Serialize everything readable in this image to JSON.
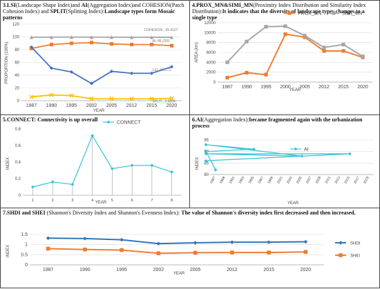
{
  "panels": [
    {
      "caption": [
        {
          "t": "3.LSI",
          "b": true
        },
        {
          "t": "(Landscape Shape Index)and ",
          "b": false
        },
        {
          "t": "AI",
          "b": true
        },
        {
          "t": "(Aggregation Index)and COHESION(Patch Cohesion Index) and ",
          "b": false
        },
        {
          "t": "SPLIT",
          "b": true
        },
        {
          "t": "(Splitting Index):",
          "b": false
        },
        {
          "t": "Landscape types form Mosaic patterns",
          "b": true
        }
      ]
    },
    {
      "caption": [
        {
          "t": "4.PROX_MN&SIMI_MN",
          "b": true
        },
        {
          "t": "(Proximity Index Distribution and Similarity Index Distribution):",
          "b": false
        },
        {
          "t": "It indicates that the diversity of landscape types changes to a single type",
          "b": true
        }
      ]
    },
    {
      "caption": [
        {
          "t": "5.CONNECT: Connectivity is up overall",
          "b": true
        }
      ]
    },
    {
      "caption": [
        {
          "t": "6.AI",
          "b": true
        },
        {
          "t": "(Aggregation Index):",
          "b": false
        },
        {
          "t": "became fragmented again with the urbanization process",
          "b": true
        }
      ]
    },
    {
      "caption": [
        {
          "t": "7.SHDI and SHEI ",
          "b": true
        },
        {
          "t": "(Shannon's Diversity Index and Shannon's Evenness Index): ",
          "b": false
        },
        {
          "t": "The value of Shannon's diversity index first decreased and then increased.",
          "b": true
        }
      ]
    }
  ],
  "chart_data": [
    {
      "type": "line",
      "x": [
        "1987",
        "1990",
        "1995",
        "2002",
        "2005",
        "2012",
        "2015",
        "2020"
      ],
      "xlabel": "YEAR",
      "ylabel": "PROPORTION (100%)",
      "ylim": [
        0,
        120
      ],
      "yticks": [
        0,
        20,
        40,
        60,
        80,
        100,
        120
      ],
      "series": [
        {
          "name": "COHESION",
          "color": "#a6a6a6",
          "values": [
            99.5,
            99.6,
            99.7,
            99.6,
            99.6,
            99.5,
            99.5,
            99.4107
          ],
          "annotation": "COHESION , 99.4107"
        },
        {
          "name": "AI",
          "color": "#ed7d31",
          "values": [
            82,
            88,
            90,
            91,
            89,
            88,
            88,
            86.2201
          ],
          "annotation": "AI, 86.2201"
        },
        {
          "name": "LSI",
          "color": "#4472c4",
          "values": [
            84,
            51,
            45,
            27,
            46,
            43,
            43,
            53.171
          ],
          "annotation": "LSI , 53.171"
        },
        {
          "name": "SPLIT",
          "color": "#ffc000",
          "values": [
            6,
            9,
            8,
            3,
            3,
            3,
            3,
            3.6884
          ],
          "annotation": "SPLIT , 3.6884"
        }
      ]
    },
    {
      "type": "line",
      "x": [
        "1987",
        "1990",
        "1995",
        "2000",
        "2005",
        "2012",
        "2015",
        "2020"
      ],
      "xlabel": "YEAR",
      "ylabel": "AREA (km)",
      "ylim": [
        0,
        12000
      ],
      "yticks": [
        0,
        2000,
        4000,
        6000,
        8000,
        10000,
        12000
      ],
      "legend": "top-right",
      "series": [
        {
          "name": "PROX_MN",
          "color": "#ed7d31",
          "values": [
            900,
            1900,
            1500,
            9700,
            9100,
            6300,
            6300,
            5000
          ]
        },
        {
          "name": "SIMI_MN",
          "color": "#a6a6a6",
          "values": [
            4000,
            8200,
            11200,
            11300,
            9400,
            7000,
            7600,
            5200
          ]
        }
      ]
    },
    {
      "type": "line",
      "x": [
        "1",
        "2",
        "3",
        "4",
        "5",
        "6",
        "7",
        "8"
      ],
      "xlabel": "YEAR",
      "ylabel": "INDEX",
      "ylim": [
        0,
        0.8
      ],
      "yticks": [
        0,
        0.2,
        0.4,
        0.6,
        0.8
      ],
      "legend": "top-right",
      "series": [
        {
          "name": "CONNECT",
          "color": "#2ec4d6",
          "values": [
            0.1,
            0.16,
            0.13,
            0.72,
            0.32,
            0.36,
            0.36,
            0.28
          ]
        }
      ]
    },
    {
      "type": "line",
      "x": [
        "1987",
        "1989",
        "1991",
        "1993",
        "1995",
        "1997",
        "1999",
        "2001",
        "2003",
        "2005",
        "2007",
        "2009",
        "2011",
        "2013",
        "2015",
        "2017",
        "2019"
      ],
      "xlabel": "YEAR",
      "ylabel": "INDEX",
      "ylim": [
        80,
        95
      ],
      "yticks": [
        80,
        85,
        90,
        95
      ],
      "legend": "top",
      "series": [
        {
          "name": "AI",
          "color": "#2ec4d6",
          "points": [
            [
              "1987",
              82
            ],
            [
              "1990",
              90
            ],
            [
              "1995",
              91
            ],
            [
              "2002",
              93
            ],
            [
              "2005",
              88
            ],
            [
              "2012",
              89
            ],
            [
              "2015",
              89
            ],
            [
              "2020",
              86
            ]
          ]
        }
      ]
    },
    {
      "type": "line",
      "x": [
        "1987",
        "1990",
        "1995",
        "2002",
        "2005",
        "2012",
        "2015",
        "2020"
      ],
      "xlabel": "YEAR",
      "ylabel": "INDEX",
      "ylim": [
        0,
        1.5
      ],
      "yticks": [
        0,
        0.5,
        1,
        1.5
      ],
      "legend": "right",
      "series": [
        {
          "name": "SHDI",
          "color": "#2e75b6",
          "values": [
            1.32,
            1.3,
            1.24,
            1.05,
            1.09,
            1.12,
            1.12,
            1.14
          ]
        },
        {
          "name": "SHEI",
          "color": "#ed7d31",
          "values": [
            0.8,
            0.76,
            0.73,
            0.57,
            0.6,
            0.61,
            0.61,
            0.64
          ]
        }
      ]
    }
  ]
}
